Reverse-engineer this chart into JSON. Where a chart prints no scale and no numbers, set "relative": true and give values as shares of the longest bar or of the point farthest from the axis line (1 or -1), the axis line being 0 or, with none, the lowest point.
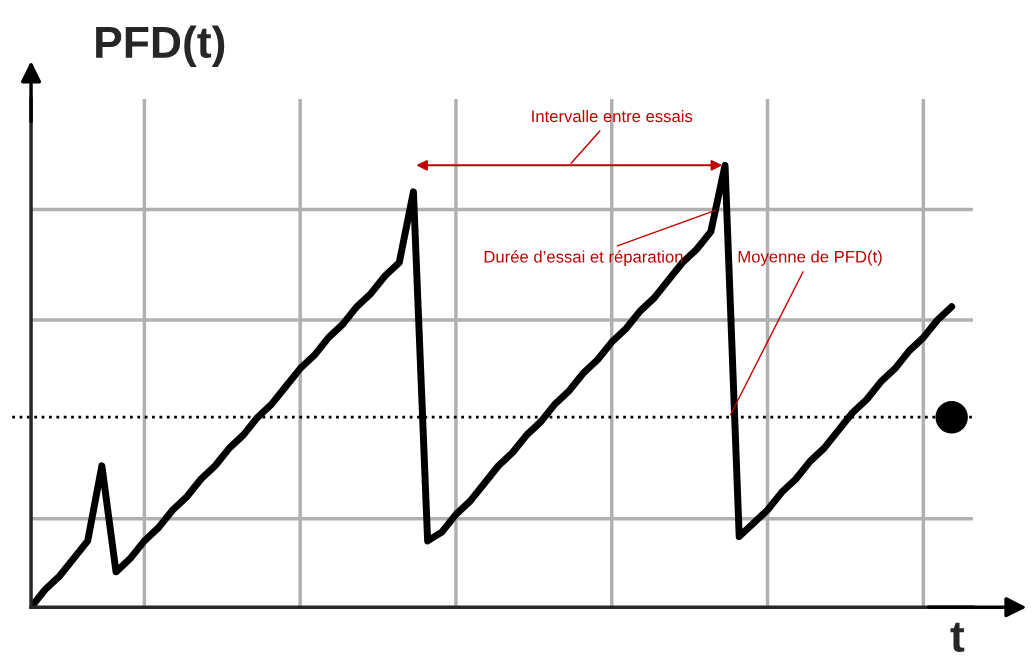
{
  "chart_data": {
    "type": "line",
    "relative": true,
    "ylabel": "PFD(t)",
    "xlabel": "t",
    "grid": true,
    "marker": "none",
    "line_style": "solid",
    "categories": [
      null,
      null,
      null,
      null,
      null,
      null,
      null,
      null,
      null,
      null,
      null,
      null,
      null,
      null,
      null,
      null,
      null,
      null,
      null,
      null,
      null,
      null,
      null,
      null,
      null,
      null,
      null,
      null,
      null,
      null,
      null,
      null,
      null,
      null,
      null,
      null,
      null,
      null,
      null,
      null,
      null,
      null,
      null,
      null,
      null,
      null,
      null,
      null,
      null,
      null,
      null,
      null,
      null,
      null,
      null,
      null,
      null,
      null,
      null,
      null,
      null,
      null,
      null,
      null,
      null,
      null
    ],
    "series": [
      {
        "color": "#000000",
        "values": [
          0,
          0.04,
          0.07,
          0.11,
          0.15,
          0.32,
          0.08,
          0.11,
          0.15,
          0.18,
          0.22,
          0.25,
          0.29,
          0.32,
          0.36,
          0.39,
          0.43,
          0.46,
          0.5,
          0.54,
          0.57,
          0.61,
          0.64,
          0.68,
          0.71,
          0.75,
          0.78,
          0.94,
          0.15,
          0.17,
          0.21,
          0.24,
          0.28,
          0.32,
          0.35,
          0.39,
          0.42,
          0.46,
          0.49,
          0.53,
          0.56,
          0.6,
          0.63,
          0.67,
          0.7,
          0.74,
          0.78,
          0.81,
          0.85,
          1.0,
          0.16,
          0.19,
          0.22,
          0.26,
          0.29,
          0.33,
          0.36,
          0.4,
          0.44,
          0.47,
          0.51,
          0.54,
          0.58,
          0.61,
          0.65,
          0.68
        ]
      }
    ],
    "ref_lines": [
      {
        "axis": "y",
        "value": 0.43,
        "color": "#000000",
        "line_style": "dotted"
      }
    ],
    "annotations": [
      "Intervalle entre essais",
      "Durée d’essai et réparation",
      "Moyenne de PFD(t)"
    ]
  }
}
